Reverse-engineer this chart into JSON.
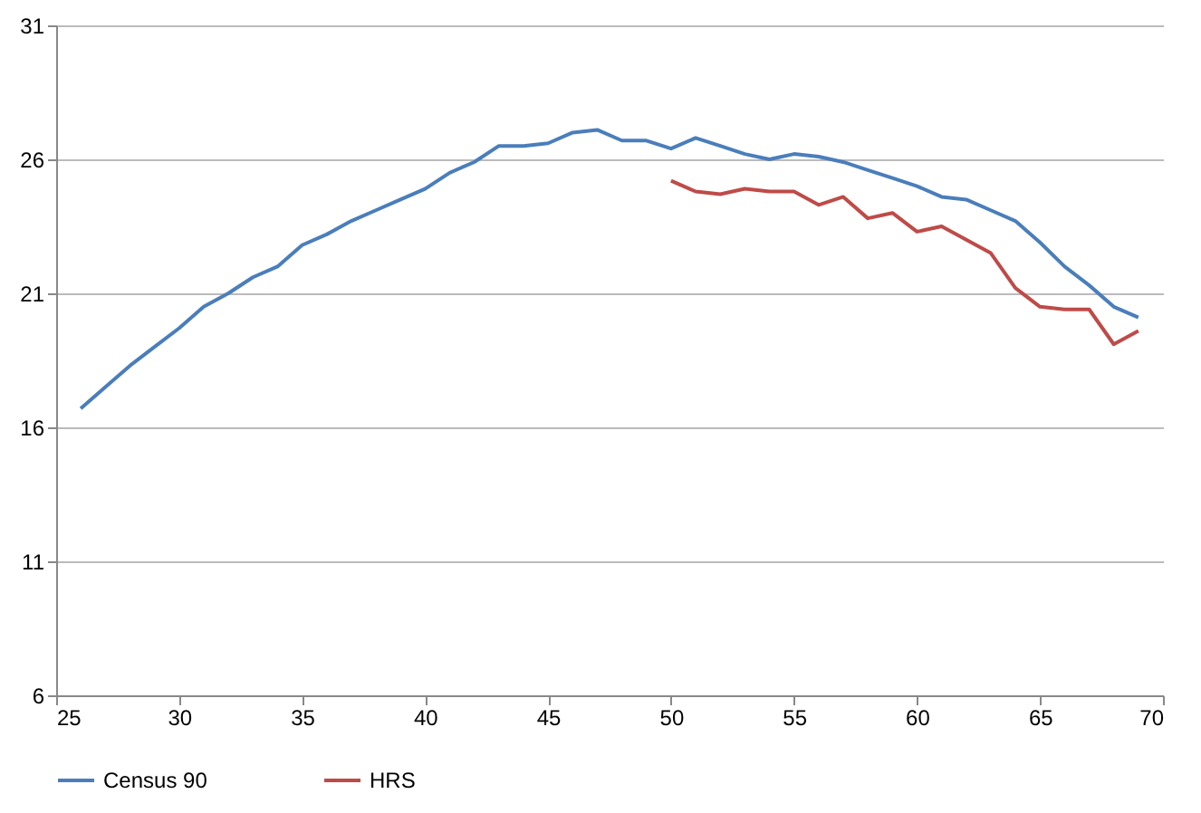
{
  "chart_data": {
    "type": "line",
    "x": [
      26,
      27,
      28,
      29,
      30,
      31,
      32,
      33,
      34,
      35,
      36,
      37,
      38,
      39,
      40,
      41,
      42,
      43,
      44,
      45,
      46,
      47,
      48,
      49,
      50,
      51,
      52,
      53,
      54,
      55,
      56,
      57,
      58,
      59,
      60,
      61,
      62,
      63,
      64,
      65,
      66,
      67,
      68,
      69
    ],
    "series": [
      {
        "name": "Census 90",
        "color": "#4a7ebb",
        "values": [
          16.7,
          17.5,
          18.3,
          19.0,
          19.7,
          20.5,
          21.0,
          21.6,
          22.0,
          22.8,
          23.2,
          23.7,
          24.1,
          24.5,
          24.9,
          25.5,
          25.9,
          26.5,
          26.5,
          26.6,
          27.0,
          27.1,
          26.7,
          26.7,
          26.4,
          26.8,
          26.5,
          26.2,
          26.0,
          26.2,
          26.1,
          25.9,
          25.6,
          25.3,
          25.0,
          24.6,
          24.5,
          24.1,
          23.7,
          22.9,
          22.0,
          21.3,
          20.5,
          20.1
        ]
      },
      {
        "name": "HRS",
        "color": "#be4b48",
        "values": [
          null,
          null,
          null,
          null,
          null,
          null,
          null,
          null,
          null,
          null,
          null,
          null,
          null,
          null,
          null,
          null,
          null,
          null,
          null,
          null,
          null,
          null,
          null,
          null,
          25.2,
          24.8,
          24.7,
          24.9,
          24.8,
          24.8,
          24.3,
          24.6,
          23.8,
          24.0,
          23.3,
          23.5,
          23.0,
          22.5,
          21.2,
          20.5,
          20.4,
          20.4,
          19.1,
          19.6
        ]
      }
    ],
    "xlim": [
      25,
      70
    ],
    "xticks": [
      25,
      30,
      35,
      40,
      45,
      50,
      55,
      60,
      65,
      70
    ],
    "ylim": [
      6,
      31
    ],
    "yticks": [
      6,
      11,
      16,
      21,
      26,
      31
    ],
    "grid": "y",
    "legend": "bottom",
    "marker": "none",
    "line_style": "solid"
  }
}
